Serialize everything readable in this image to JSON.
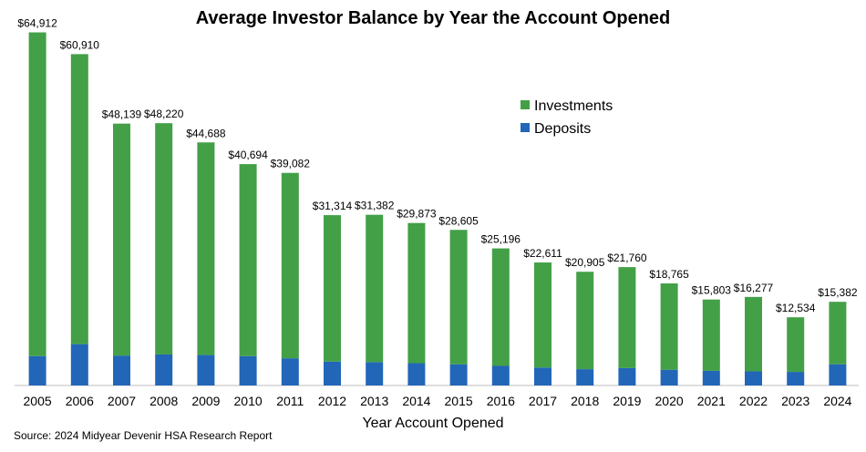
{
  "chart_data": {
    "type": "bar",
    "stacked": true,
    "title": "Average Investor Balance by Year the Account Opened",
    "xlabel": "Year Account Opened",
    "ylabel": "",
    "ylim": [
      0,
      65000
    ],
    "categories": [
      "2005",
      "2006",
      "2007",
      "2008",
      "2009",
      "2010",
      "2011",
      "2012",
      "2013",
      "2014",
      "2015",
      "2016",
      "2017",
      "2018",
      "2019",
      "2020",
      "2021",
      "2022",
      "2023",
      "2024"
    ],
    "totals_labels": [
      "$64,912",
      "$60,910",
      "$48,139",
      "$48,220",
      "$44,688",
      "$40,694",
      "$39,082",
      "$31,314",
      "$31,382",
      "$29,873",
      "$28,605",
      "$25,196",
      "$22,611",
      "$20,905",
      "$21,760",
      "$18,765",
      "$15,803",
      "$16,277",
      "$12,534",
      "$15,382"
    ],
    "series": [
      {
        "name": "Deposits",
        "color": "#2266b8",
        "values": [
          5400,
          7600,
          5500,
          5700,
          5600,
          5400,
          5000,
          4400,
          4300,
          4100,
          3900,
          3600,
          3300,
          3000,
          3200,
          2900,
          2700,
          2600,
          2500,
          3900
        ]
      },
      {
        "name": "Investments",
        "color": "#43a047",
        "values": [
          59512,
          53310,
          42639,
          42520,
          39088,
          35294,
          34082,
          26914,
          27082,
          25773,
          24705,
          21596,
          19311,
          17905,
          18560,
          15865,
          13103,
          13677,
          10034,
          11482
        ]
      }
    ],
    "legend": {
      "position": "top-right",
      "order": [
        "Investments",
        "Deposits"
      ]
    },
    "grid": false
  },
  "source": "Source: 2024 Midyear Devenir HSA Research Report"
}
